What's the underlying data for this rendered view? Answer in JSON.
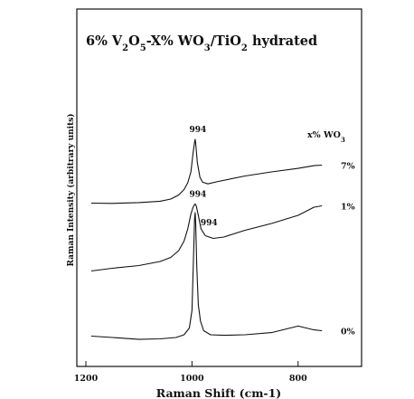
{
  "chart_data": {
    "type": "line",
    "title": {
      "parts": [
        {
          "text": "6% V",
          "sub": false
        },
        {
          "text": "2",
          "sub": true
        },
        {
          "text": "O",
          "sub": false
        },
        {
          "text": "5",
          "sub": true
        },
        {
          "text": "-X% WO",
          "sub": false
        },
        {
          "text": "3",
          "sub": true
        },
        {
          "text": "/TiO",
          "sub": false
        },
        {
          "text": "2",
          "sub": true
        },
        {
          "text": " hydrated",
          "sub": false
        }
      ]
    },
    "xlabel": "Raman Shift (cm-1)",
    "ylabel": "Raman Intensity (arbitrary units)",
    "xlim": [
      1200,
      740
    ],
    "x_reversed": true,
    "xticks": [
      1200,
      1000,
      800
    ],
    "ylim": [
      0,
      100
    ],
    "legend_title": {
      "parts": [
        {
          "text": "x% WO",
          "sub": false
        },
        {
          "text": "3",
          "sub": true
        }
      ]
    },
    "series": [
      {
        "name": "7%",
        "x": [
          1190,
          1150,
          1100,
          1060,
          1040,
          1025,
          1015,
          1008,
          1002,
          998,
          995,
          994,
          993,
          990,
          985,
          980,
          970,
          950,
          900,
          850,
          800,
          770,
          755
        ],
        "y": [
          53.5,
          53.4,
          53.7,
          54.2,
          55.0,
          56.5,
          58.5,
          61.0,
          65.0,
          72.0,
          76.0,
          77.0,
          75.5,
          68.5,
          63.0,
          61.2,
          60.6,
          61.5,
          63.5,
          65.0,
          66.3,
          67.3,
          67.5
        ],
        "peak_label": "994"
      },
      {
        "name": "1%",
        "x": [
          1190,
          1150,
          1100,
          1060,
          1040,
          1025,
          1015,
          1008,
          1002,
          998,
          995,
          994,
          992,
          988,
          983,
          975,
          960,
          940,
          900,
          850,
          800,
          770,
          755
        ],
        "y": [
          28.5,
          29.5,
          30.5,
          32.0,
          33.5,
          36.0,
          39.5,
          44.0,
          49.5,
          52.0,
          53.0,
          53.2,
          52.5,
          49.0,
          44.0,
          41.5,
          40.5,
          41.0,
          43.5,
          46.0,
          49.0,
          52.0,
          52.5
        ],
        "peak_label": "994"
      },
      {
        "name": "0%",
        "x": [
          1190,
          1150,
          1100,
          1060,
          1030,
          1015,
          1005,
          1000,
          997,
          995,
          994,
          993,
          991,
          988,
          984,
          978,
          965,
          940,
          900,
          850,
          800,
          770,
          755
        ],
        "y": [
          4.5,
          4.0,
          3.3,
          3.5,
          4.0,
          5.0,
          7.5,
          14.0,
          35.0,
          48.0,
          50.0,
          46.0,
          30.0,
          16.0,
          10.0,
          6.5,
          5.0,
          4.8,
          5.0,
          5.8,
          8.2,
          6.8,
          6.5
        ],
        "peak_label": "994"
      }
    ]
  }
}
